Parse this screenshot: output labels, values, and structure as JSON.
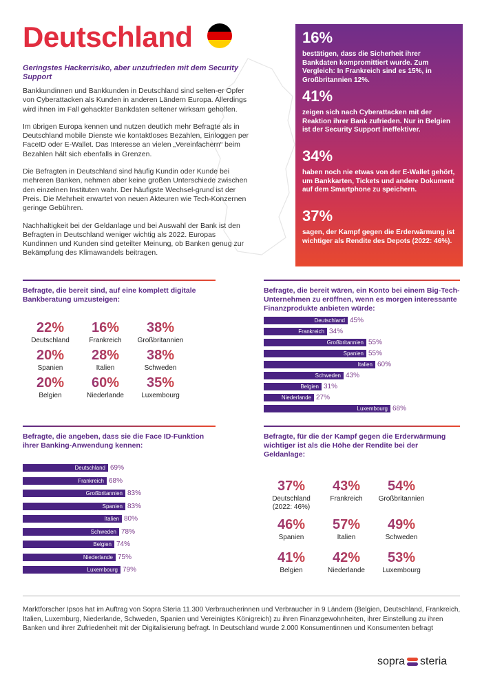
{
  "header": {
    "title": "Deutschland",
    "flag_colors": [
      "#000000",
      "#dd0000",
      "#ffce00"
    ]
  },
  "intro": {
    "headline": "Geringstes Hackerrisiko, aber unzufrieden mit dem Security Support",
    "paragraphs": [
      "Bankkundinnen und Bankkunden in Deutschland sind selten-er Opfer von Cyberattacken als Kunden in anderen Ländern Europa. Allerdings wird ihnen im Fall gehackter Bankdaten seltener wirksam geholfen.",
      "Im übrigen Europa kennen und nutzen deutlich mehr Befragte als in Deutschland mobile Dienste wie kontaktloses Bezahlen, Einloggen per FaceID oder E-Wallet. Das Interesse an vielen „Vereinfachern“ beim Bezahlen hält sich ebenfalls in Grenzen.",
      "Die Befragten in Deutschland sind häufig Kundin oder Kunde bei mehreren Banken, nehmen aber keine großen Unterschiede zwischen den einzelnen Instituten wahr. Der häufigste Wechsel-grund ist der Preis. Die Mehrheit erwartet von neuen Akteuren wie Tech-Konzernen geringe Gebühren.",
      "Nachhaltigkeit bei der Geldanlage und bei Auswahl der Bank ist den Befragten in Deutschland weniger wichtig als 2022. Europas Kundinnen und Kunden sind geteilter Meinung, ob Banken genug zur Bekämpfung des Klimawandels beitragen."
    ]
  },
  "highlights": [
    {
      "pct": "16%",
      "text": "bestätigen, dass die Sicherheit ihrer Bankdaten kompromittiert wurde. Zum Vergleich: In Frankreich sind es 15%, in Großbritannien 12%."
    },
    {
      "pct": "41%",
      "text": "zeigen sich nach Cyberattacken mit der Reaktion ihrer Bank zufrieden. Nur in Belgien ist der Security Support ineffektiver."
    },
    {
      "pct": "34%",
      "text": "haben noch nie etwas von der E-Wallet gehört, um Bankkarten, Tickets und andere Dokument auf dem Smartphone zu speichern."
    },
    {
      "pct": "37%",
      "text": "sagen, der Kampf gegen die Erderwärmung ist wichtiger als Rendite des Depots (2022: 46%)."
    }
  ],
  "chart_data": [
    {
      "type": "table",
      "title": "Befragte, die bereit sind, auf eine komplett digitale Bankberatung umzusteigen:",
      "categories": [
        "Deutschland",
        "Frankreich",
        "Großbritannien",
        "Spanien",
        "Italien",
        "Schweden",
        "Belgien",
        "Niederlande",
        "Luxembourg"
      ],
      "values": [
        22,
        16,
        38,
        20,
        28,
        38,
        20,
        60,
        35
      ],
      "labels": [
        "22%",
        "16%",
        "38%",
        "20%",
        "28%",
        "38%",
        "20%",
        "60%",
        "35%"
      ]
    },
    {
      "type": "bar",
      "title": "Befragte, die bereit wären, ein Konto bei einem Big-Tech-Unternehmen zu eröffnen, wenn es morgen interessante Finanzprodukte anbieten würde:",
      "categories": [
        "Deutschland",
        "Frankreich",
        "Großbritannien",
        "Spanien",
        "Italien",
        "Schweden",
        "Belgien",
        "Niederlande",
        "Luxembourg"
      ],
      "values": [
        45,
        34,
        55,
        55,
        60,
        43,
        31,
        27,
        68
      ],
      "labels": [
        "45%",
        "34%",
        "55%",
        "55%",
        "60%",
        "43%",
        "31%",
        "27%",
        "68%"
      ]
    },
    {
      "type": "bar",
      "title": "Befragte, die angeben, dass sie die Face ID-Funktion ihrer Banking-Anwendung kennen:",
      "categories": [
        "Deutschland",
        "Frankreich",
        "Großbritannien",
        "Spanien",
        "Italien",
        "Schweden",
        "Belgien",
        "Niederlande",
        "Luxembourg"
      ],
      "values": [
        69,
        68,
        83,
        83,
        80,
        78,
        74,
        75,
        79
      ],
      "labels": [
        "69%",
        "68%",
        "83%",
        "83%",
        "80%",
        "78%",
        "74%",
        "75%",
        "79%"
      ]
    },
    {
      "type": "table",
      "title": "Befragte, für die der Kampf gegen die Erderwärmung wichtiger ist als die Höhe der Rendite bei der Geldanlage:",
      "categories": [
        "Deutschland (2022: 46%)",
        "Frankreich",
        "Großbritannien",
        "Spanien",
        "Italien",
        "Schweden",
        "Belgien",
        "Niederlande",
        "Luxembourg"
      ],
      "values": [
        37,
        43,
        54,
        46,
        57,
        49,
        41,
        42,
        53
      ],
      "labels": [
        "37%",
        "43%",
        "54%",
        "46%",
        "57%",
        "49%",
        "41%",
        "42%",
        "53%"
      ]
    }
  ],
  "footer": {
    "text": "Marktforscher Ipsos hat im Auftrag von Sopra Steria 11.300 Verbraucherinnen und Verbraucher in 9 Ländern (Belgien, Deutschland, Frankreich, Italien, Luxemburg, Niederlande, Schweden, Spanien und Vereinigtes Königreich) zu ihren Finanzgewohnheiten, ihrer Einstellung zu ihren Banken und ihrer Zufriedenheit mit der Digitalisierung befragt. In Deutschland wurde 2.000 Konsumentinnen und Konsumenten befragt"
  },
  "logo": {
    "left": "sopra",
    "right": "steria",
    "mark_colors": [
      "#e8492f",
      "#5b2a86"
    ]
  }
}
